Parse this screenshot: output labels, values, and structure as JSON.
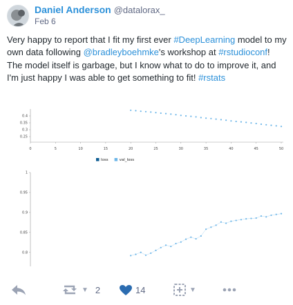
{
  "status": {
    "author": {
      "display_name": "Daniel Anderson",
      "handle": "@datalorax_",
      "date": "Feb 6"
    },
    "content": {
      "p1": "Very happy to report that I fit my first ever ",
      "tag_deeplearning": "#DeepLearning",
      "p2": " model to my own data following ",
      "mention": "@bradleyboehmke",
      "p3": "'s workshop at ",
      "tag_rstudioconf": "#rstudioconf",
      "p4": "! The model itself is garbage, but I know what to do to improve it, and I'm just happy I was able to get something to fit! ",
      "tag_rstats": "#rstats"
    }
  },
  "chart_data": [
    {
      "type": "scatter",
      "title": "",
      "xlabel": "",
      "ylabel": "",
      "xlim": [
        0,
        50
      ],
      "ylim": [
        0.22,
        0.45
      ],
      "x_ticks": [
        "0",
        "5",
        "10",
        "15",
        "20",
        "25",
        "30",
        "35",
        "40",
        "45",
        "50"
      ],
      "y_ticks": [
        "0.4",
        "0.35",
        "0.3",
        "0.25"
      ],
      "grid": false,
      "series": [
        {
          "name": "val_loss",
          "color": "#6db6e8",
          "x": [
            20,
            21,
            22,
            23,
            24,
            25,
            26,
            27,
            28,
            29,
            30,
            31,
            32,
            33,
            34,
            35,
            36,
            37,
            38,
            39,
            40,
            41,
            42,
            43,
            44,
            45,
            46,
            47,
            48,
            49,
            50
          ],
          "y": [
            0.441,
            0.438,
            0.434,
            0.431,
            0.428,
            0.424,
            0.42,
            0.417,
            0.413,
            0.409,
            0.404,
            0.4,
            0.397,
            0.393,
            0.388,
            0.384,
            0.381,
            0.377,
            0.373,
            0.369,
            0.364,
            0.36,
            0.357,
            0.353,
            0.349,
            0.345,
            0.34,
            0.336,
            0.332,
            0.328,
            0.324
          ]
        }
      ]
    },
    {
      "type": "scatter",
      "title": "",
      "xlabel": "",
      "ylabel": "",
      "xlim": [
        0,
        50
      ],
      "ylim": [
        0.765,
        1.0
      ],
      "y_ticks": [
        "1",
        "0.95",
        "0.9",
        "0.85",
        "0.8",
        "0.75"
      ],
      "grid": false,
      "legend": {
        "position": "top-center",
        "entries": [
          "loss",
          "val_loss"
        ]
      },
      "series": [
        {
          "name": "val_loss",
          "color": "#6db6e8",
          "x": [
            20,
            21,
            22,
            23,
            24,
            25,
            26,
            27,
            28,
            29,
            30,
            31,
            32,
            33,
            34,
            35,
            36,
            37,
            38,
            39,
            40,
            41,
            42,
            43,
            44,
            45,
            46,
            47,
            48,
            49,
            50
          ],
          "y": [
            0.792,
            0.795,
            0.8,
            0.793,
            0.798,
            0.805,
            0.812,
            0.818,
            0.815,
            0.822,
            0.826,
            0.833,
            0.838,
            0.834,
            0.841,
            0.858,
            0.863,
            0.868,
            0.876,
            0.873,
            0.878,
            0.88,
            0.882,
            0.884,
            0.885,
            0.886,
            0.891,
            0.889,
            0.893,
            0.895,
            0.897
          ]
        },
        {
          "name": "loss",
          "color": "#0e5d93",
          "x": [],
          "y": []
        }
      ]
    }
  ],
  "actions": {
    "boost_count": "2",
    "favourite_count": "14"
  },
  "colors": {
    "accent": "#2b90d9",
    "muted": "#606984",
    "favourite": "#2b6cb0"
  }
}
